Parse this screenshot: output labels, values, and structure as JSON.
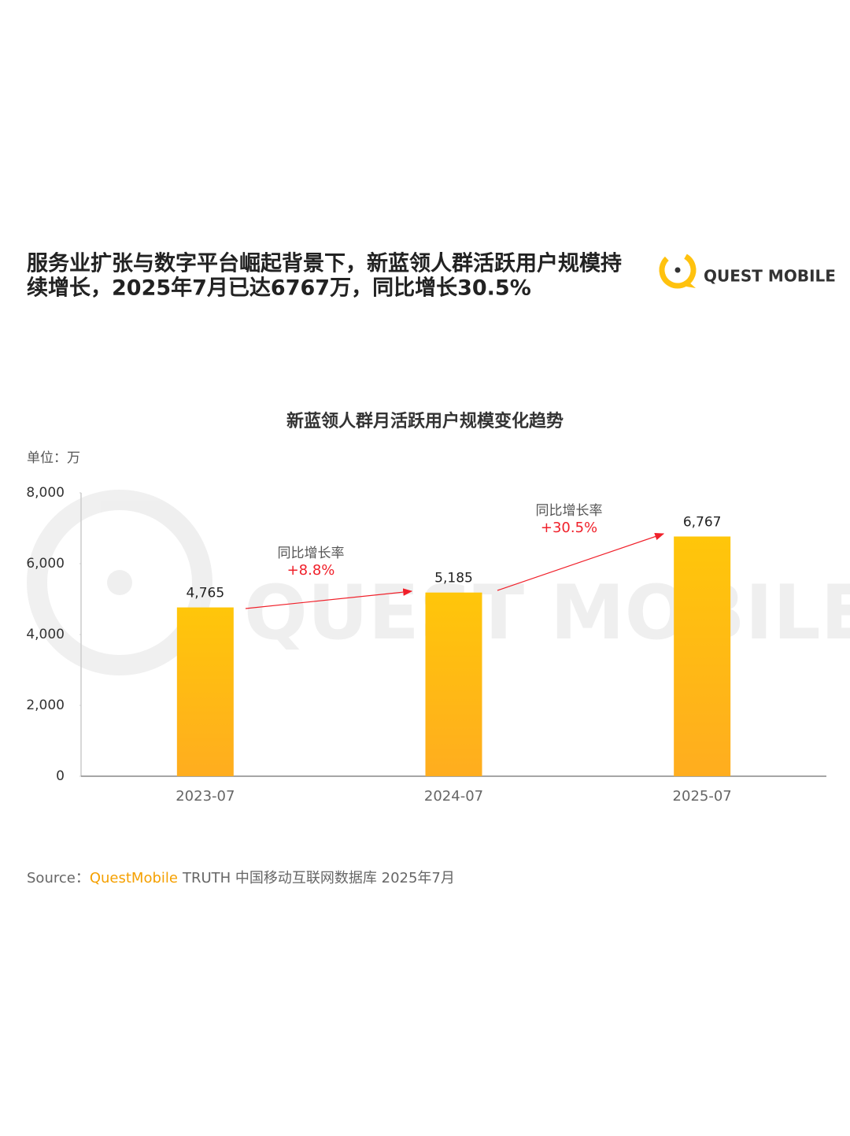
{
  "header": {
    "title_lines": [
      "服务业扩张与数字平台崛起背景下，新蓝领人群活跃用户规模持",
      "续增长，2025年7月已达6767万，同比增长30.5%"
    ]
  },
  "logo": {
    "text": "QUEST MOBILE"
  },
  "chart_data": {
    "type": "bar",
    "title": "新蓝领人群月活跃用户规模变化趋势",
    "unit_label": "单位：万",
    "categories": [
      "2023-07",
      "2024-07",
      "2025-07"
    ],
    "values": [
      4765,
      5185,
      6767
    ],
    "value_labels": [
      "4,765",
      "5,185",
      "6,767"
    ],
    "color": "#ffc60a",
    "ylim": [
      0,
      8000
    ],
    "yticks": [
      0,
      {
        "value": 2000,
        "label": "2,000"
      },
      {
        "value": 4000,
        "label": "4,000"
      },
      {
        "value": 6000,
        "label": "6,000"
      },
      {
        "value": 8000,
        "label": "8,000"
      }
    ],
    "grid": false,
    "annotations": [
      {
        "label": "同比增长率",
        "value": "+8.8%"
      },
      {
        "label": "同比增长率",
        "value": "+30.5%"
      }
    ]
  },
  "source": {
    "prefix": "Source：",
    "brand": "QuestMobile",
    "text": "TRUTH 中国移动互联网数据库 2025年7月"
  }
}
